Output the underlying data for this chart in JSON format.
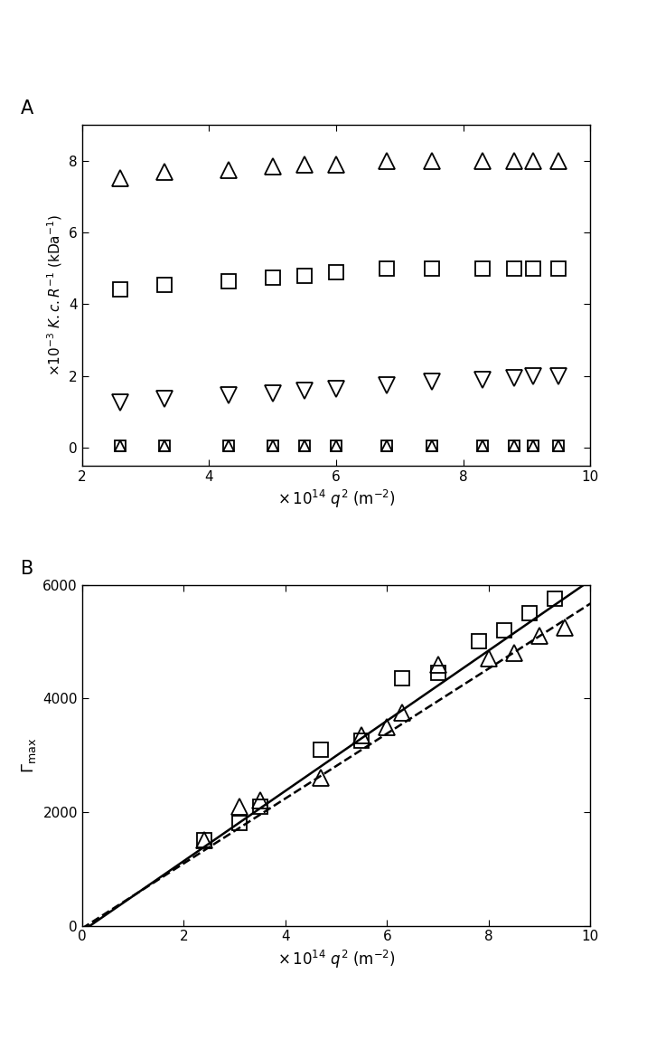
{
  "panel_A": {
    "xlim": [
      2,
      10
    ],
    "ylim": [
      -0.5,
      9
    ],
    "xticks": [
      2,
      4,
      6,
      8,
      10
    ],
    "yticks": [
      0,
      2,
      4,
      6,
      8
    ],
    "triangle_up": {
      "x": [
        2.6,
        3.3,
        4.3,
        5.0,
        5.5,
        6.0,
        6.8,
        7.5,
        8.3,
        8.8,
        9.1,
        9.5
      ],
      "y": [
        7.5,
        7.7,
        7.75,
        7.85,
        7.88,
        7.9,
        8.0,
        8.0,
        8.0,
        8.0,
        8.0,
        8.0
      ]
    },
    "square": {
      "x": [
        2.6,
        3.3,
        4.3,
        5.0,
        5.5,
        6.0,
        6.8,
        7.5,
        8.3,
        8.8,
        9.1,
        9.5
      ],
      "y": [
        4.4,
        4.55,
        4.65,
        4.75,
        4.8,
        4.9,
        5.0,
        5.0,
        5.0,
        5.0,
        5.0,
        5.0
      ]
    },
    "triangle_down": {
      "x": [
        2.6,
        3.3,
        4.3,
        5.0,
        5.5,
        6.0,
        6.8,
        7.5,
        8.3,
        8.8,
        9.1,
        9.5
      ],
      "y": [
        1.25,
        1.35,
        1.45,
        1.5,
        1.6,
        1.65,
        1.75,
        1.85,
        1.9,
        1.95,
        2.0,
        2.0
      ]
    },
    "bottom_tri": {
      "x": [
        2.6,
        3.3,
        4.3,
        5.0,
        5.5,
        6.0,
        6.8,
        7.5,
        8.3,
        8.8,
        9.1,
        9.5
      ],
      "y": [
        0.05,
        0.05,
        0.05,
        0.05,
        0.05,
        0.05,
        0.05,
        0.05,
        0.05,
        0.05,
        0.05,
        0.05
      ]
    },
    "bottom_sq": {
      "x": [
        2.6,
        3.3,
        4.3,
        5.0,
        5.5,
        6.0,
        6.8,
        7.5,
        8.3,
        8.8,
        9.1,
        9.5
      ],
      "y": [
        0.05,
        0.05,
        0.05,
        0.05,
        0.05,
        0.05,
        0.05,
        0.05,
        0.05,
        0.05,
        0.05,
        0.05
      ]
    }
  },
  "panel_B": {
    "xlim": [
      0,
      10
    ],
    "ylim": [
      0,
      6000
    ],
    "xticks": [
      0,
      2,
      4,
      6,
      8,
      10
    ],
    "yticks": [
      0,
      2000,
      4000,
      6000
    ],
    "square_data": {
      "x": [
        2.4,
        3.1,
        3.5,
        4.7,
        5.5,
        6.3,
        7.0,
        7.8,
        8.3,
        8.8,
        9.3
      ],
      "y": [
        1500,
        1800,
        2100,
        3100,
        3250,
        4350,
        4450,
        5000,
        5200,
        5500,
        5750
      ]
    },
    "triangle_data": {
      "x": [
        2.4,
        3.1,
        3.5,
        4.7,
        5.5,
        6.0,
        6.3,
        7.0,
        8.0,
        8.5,
        9.0,
        9.5
      ],
      "y": [
        1500,
        2100,
        2200,
        2600,
        3350,
        3500,
        3750,
        4600,
        4700,
        4800,
        5100,
        5250
      ]
    },
    "solid_slope": 618,
    "solid_intercept": -100,
    "dashed_slope": 572,
    "dashed_intercept": -50
  }
}
